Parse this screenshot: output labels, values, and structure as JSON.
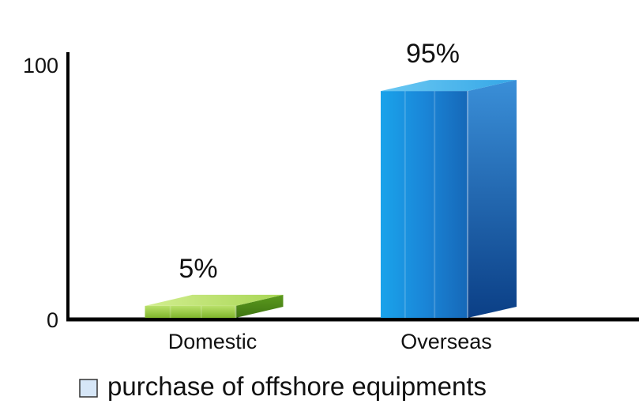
{
  "chart_data": {
    "type": "bar",
    "style": "3d",
    "categories": [
      "Domestic",
      "Overseas"
    ],
    "series": [
      {
        "name": "purchase of offshore equipments",
        "values": [
          5,
          95
        ]
      }
    ],
    "data_labels": [
      "5%",
      "95%"
    ],
    "bar_colors": [
      "#8cc63f",
      "#1f8fe0"
    ],
    "yticks": [
      0,
      100
    ],
    "ylim": [
      0,
      100
    ],
    "title": "",
    "xlabel": "",
    "ylabel": "",
    "grid": false,
    "legend": {
      "position": "bottom",
      "entries": [
        "purchase of offshore equipments"
      ]
    }
  }
}
